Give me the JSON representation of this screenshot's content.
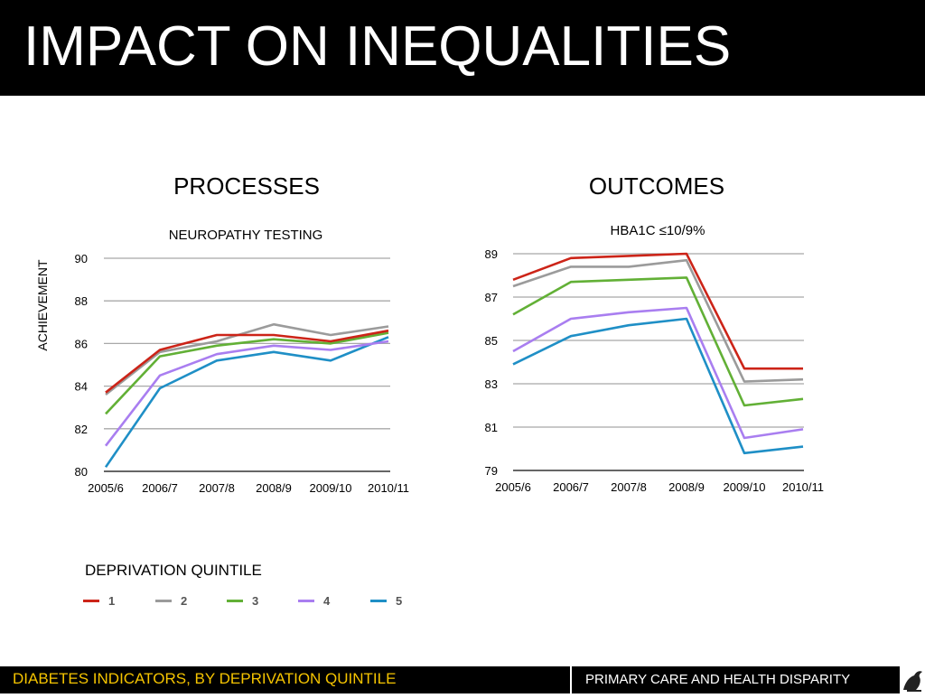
{
  "slide": {
    "title": "IMPACT ON INEQUALITIES",
    "heading_left": "PROCESSES",
    "heading_right": "OUTCOMES"
  },
  "legend": {
    "title": "DEPRIVATION QUINTILE",
    "items": [
      {
        "label": "1",
        "color": "#cc2418"
      },
      {
        "label": "2",
        "color": "#9b9b9b"
      },
      {
        "label": "3",
        "color": "#62b036"
      },
      {
        "label": "4",
        "color": "#a97ef0"
      },
      {
        "label": "5",
        "color": "#1f8fc6"
      }
    ]
  },
  "footer": {
    "left_text": "DIABETES INDICATORS, BY DEPRIVATION QUINTILE",
    "right_text": "PRIMARY CARE AND HEALTH DISPARITY",
    "left_color": "#f5c400"
  },
  "chart_data": [
    {
      "type": "line",
      "title": "NEUROPATHY TESTING",
      "xlabel": "",
      "ylabel": "ACHIEVEMENT",
      "categories": [
        "2005/6",
        "2006/7",
        "2007/8",
        "2008/9",
        "2009/10",
        "2010/11"
      ],
      "ylim": [
        80,
        90
      ],
      "yticks": [
        80,
        82,
        84,
        86,
        88,
        90
      ],
      "grid": true,
      "series": [
        {
          "name": "1",
          "color": "#cc2418",
          "values": [
            83.7,
            85.7,
            86.4,
            86.4,
            86.1,
            86.6
          ]
        },
        {
          "name": "2",
          "color": "#9b9b9b",
          "values": [
            83.6,
            85.6,
            86.1,
            86.9,
            86.4,
            86.8
          ]
        },
        {
          "name": "3",
          "color": "#62b036",
          "values": [
            82.7,
            85.4,
            85.9,
            86.2,
            86.0,
            86.5
          ]
        },
        {
          "name": "4",
          "color": "#a97ef0",
          "values": [
            81.2,
            84.5,
            85.5,
            85.9,
            85.7,
            86.1
          ]
        },
        {
          "name": "5",
          "color": "#1f8fc6",
          "values": [
            80.2,
            83.9,
            85.2,
            85.6,
            85.2,
            86.3
          ]
        }
      ]
    },
    {
      "type": "line",
      "title": "HBA1C ≤10/9%",
      "xlabel": "",
      "ylabel": "",
      "categories": [
        "2005/6",
        "2006/7",
        "2007/8",
        "2008/9",
        "2009/10",
        "2010/11"
      ],
      "ylim": [
        79,
        89
      ],
      "yticks": [
        79,
        81,
        83,
        85,
        87,
        89
      ],
      "grid": true,
      "series": [
        {
          "name": "1",
          "color": "#cc2418",
          "values": [
            87.8,
            88.8,
            88.9,
            89.0,
            83.7,
            83.7
          ]
        },
        {
          "name": "2",
          "color": "#9b9b9b",
          "values": [
            87.5,
            88.4,
            88.4,
            88.7,
            83.1,
            83.2
          ]
        },
        {
          "name": "3",
          "color": "#62b036",
          "values": [
            86.2,
            87.7,
            87.8,
            87.9,
            82.0,
            82.3
          ]
        },
        {
          "name": "4",
          "color": "#a97ef0",
          "values": [
            84.5,
            86.0,
            86.3,
            86.5,
            80.5,
            80.9
          ]
        },
        {
          "name": "5",
          "color": "#1f8fc6",
          "values": [
            83.9,
            85.2,
            85.7,
            86.0,
            79.8,
            80.1
          ]
        }
      ]
    }
  ]
}
